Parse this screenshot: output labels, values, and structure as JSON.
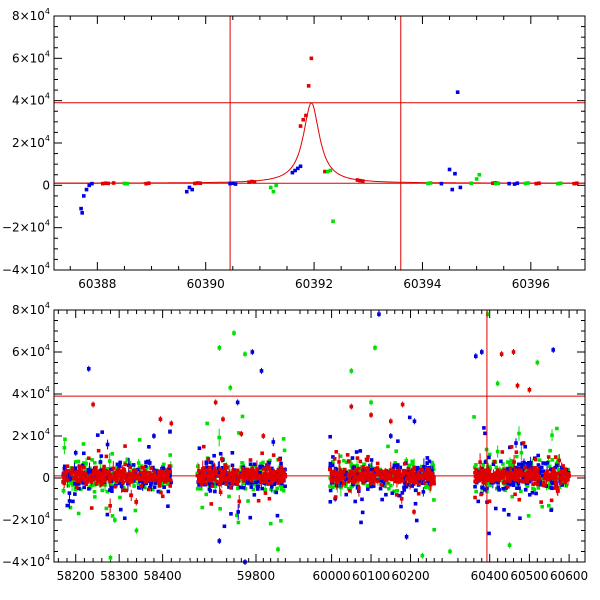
{
  "colors": {
    "red": "#e00000",
    "green": "#00e000",
    "blue": "#0000e0",
    "axis": "#000000"
  },
  "chart_data": [
    {
      "type": "scatter",
      "title": "",
      "xlabel": "",
      "ylabel": "",
      "xlim": [
        60387.2,
        60397.0
      ],
      "ylim": [
        -40000,
        80000
      ],
      "x_ticks": [
        "60388",
        "60390",
        "60392",
        "60394",
        "60396"
      ],
      "x_tick_values": [
        60388,
        60390,
        60392,
        60394,
        60396
      ],
      "y_ticks": [
        {
          "value": 80000,
          "base": "8×10",
          "exp": "4"
        },
        {
          "value": 60000,
          "base": "6×10",
          "exp": "4"
        },
        {
          "value": 40000,
          "base": "4×10",
          "exp": "4"
        },
        {
          "value": 20000,
          "base": "2×10",
          "exp": "4"
        },
        {
          "value": 0,
          "base": "0",
          "exp": ""
        },
        {
          "value": -20000,
          "base": "−2×10",
          "exp": "4"
        },
        {
          "value": -40000,
          "base": "−4×10",
          "exp": "4"
        }
      ],
      "reference_lines": {
        "horizontal": [
          39000,
          1000
        ],
        "vertical": [
          60390.45,
          60393.6
        ]
      },
      "model_curve": {
        "center": 60391.95,
        "peak": 39000,
        "baseline": 1000,
        "width": 0.18
      },
      "series": [
        {
          "color": "red",
          "points": [
            [
              60388.1,
              800
            ],
            [
              60388.15,
              1000
            ],
            [
              60388.2,
              900
            ],
            [
              60388.3,
              1100
            ],
            [
              60388.9,
              800
            ],
            [
              60388.95,
              1000
            ],
            [
              60389.8,
              900
            ],
            [
              60389.85,
              1100
            ],
            [
              60389.9,
              1000
            ],
            [
              60390.8,
              1500
            ],
            [
              60390.85,
              1800
            ],
            [
              60390.9,
              1600
            ],
            [
              60391.75,
              28000
            ],
            [
              60391.8,
              31000
            ],
            [
              60391.85,
              33000
            ],
            [
              60391.9,
              47000
            ],
            [
              60391.95,
              60000
            ],
            [
              60392.2,
              6500
            ],
            [
              60392.8,
              2500
            ],
            [
              60392.85,
              2200
            ],
            [
              60392.9,
              2000
            ],
            [
              60395.3,
              1000
            ],
            [
              60395.35,
              1200
            ],
            [
              60396.1,
              800
            ],
            [
              60396.15,
              1000
            ],
            [
              60396.8,
              800
            ],
            [
              60396.85,
              1000
            ]
          ]
        },
        {
          "color": "blue",
          "points": [
            [
              60387.7,
              -11000
            ],
            [
              60387.72,
              -13000
            ],
            [
              60387.75,
              -5000
            ],
            [
              60387.8,
              -2000
            ],
            [
              60387.85,
              0
            ],
            [
              60387.9,
              800
            ],
            [
              60389.65,
              -3000
            ],
            [
              60389.7,
              -1000
            ],
            [
              60389.75,
              -2000
            ],
            [
              60390.45,
              800
            ],
            [
              60390.5,
              1000
            ],
            [
              60390.55,
              600
            ],
            [
              60391.6,
              6000
            ],
            [
              60391.65,
              7000
            ],
            [
              60391.7,
              8000
            ],
            [
              60391.75,
              9000
            ],
            [
              60394.35,
              800
            ],
            [
              60394.5,
              7500
            ],
            [
              60394.6,
              5500
            ],
            [
              60394.65,
              44000
            ],
            [
              60394.55,
              -2000
            ],
            [
              60394.7,
              -1000
            ],
            [
              60395.6,
              800
            ],
            [
              60395.7,
              600
            ],
            [
              60395.75,
              1000
            ]
          ]
        },
        {
          "color": "green",
          "points": [
            [
              60388.5,
              900
            ],
            [
              60388.55,
              800
            ],
            [
              60391.2,
              -1000
            ],
            [
              60391.25,
              -3000
            ],
            [
              60391.3,
              0
            ],
            [
              60392.25,
              6500
            ],
            [
              60392.3,
              7000
            ],
            [
              60392.35,
              -17000
            ],
            [
              60394.1,
              900
            ],
            [
              60394.15,
              1100
            ],
            [
              60394.9,
              1000
            ],
            [
              60395.0,
              3000
            ],
            [
              60395.05,
              5000
            ],
            [
              60395.35,
              800
            ],
            [
              60395.4,
              1000
            ],
            [
              60395.9,
              900
            ],
            [
              60395.95,
              1100
            ],
            [
              60396.5,
              800
            ],
            [
              60396.55,
              1000
            ]
          ]
        }
      ]
    },
    {
      "type": "scatter",
      "title": "",
      "xlabel": "",
      "ylabel": "",
      "ylim": [
        -40000,
        80000
      ],
      "x_segments": [
        {
          "xlim": [
            58150,
            58440
          ],
          "ticks": [
            58200,
            58300,
            58400
          ]
        },
        {
          "xlim": [
            59620,
            59920
          ],
          "ticks": [
            59800
          ]
        },
        {
          "xlim": [
            59920,
            60300
          ],
          "ticks": [
            60000,
            60100,
            60200
          ]
        },
        {
          "xlim": [
            60300,
            60640
          ],
          "ticks": [
            60400,
            60500,
            60600
          ]
        }
      ],
      "x_ticks": [
        "58200",
        "58300",
        "58400",
        "59800",
        "60000",
        "60100",
        "60200",
        "60400",
        "60500",
        "60600"
      ],
      "y_ticks": [
        {
          "value": 80000,
          "base": "8×10",
          "exp": "4"
        },
        {
          "value": 60000,
          "base": "6×10",
          "exp": "4"
        },
        {
          "value": 40000,
          "base": "4×10",
          "exp": "4"
        },
        {
          "value": 20000,
          "base": "2×10",
          "exp": "4"
        },
        {
          "value": 0,
          "base": "0",
          "exp": ""
        },
        {
          "value": -20000,
          "base": "−2×10",
          "exp": "4"
        },
        {
          "value": -40000,
          "base": "−4×10",
          "exp": "4"
        }
      ],
      "reference_lines": {
        "horizontal": [
          39000,
          1000
        ],
        "vertical": [
          60393
        ]
      },
      "observing_seasons": [
        [
          58170,
          58420
        ],
        [
          59640,
          59880
        ],
        [
          59995,
          60260
        ],
        [
          60360,
          60600
        ]
      ],
      "series": [
        {
          "color": "red",
          "points": [
            [
              58240,
              35000
            ],
            [
              58395,
              28000
            ],
            [
              58420,
              26000
            ],
            [
              59690,
              36000
            ],
            [
              59710,
              28000
            ],
            [
              59760,
              21000
            ],
            [
              59820,
              20000
            ],
            [
              60050,
              34000
            ],
            [
              60100,
              30000
            ],
            [
              60150,
              27000
            ],
            [
              60180,
              35000
            ],
            [
              60430,
              59000
            ],
            [
              60460,
              60000
            ],
            [
              60470,
              44000
            ],
            [
              60500,
              42000
            ]
          ]
        },
        {
          "color": "blue",
          "points": [
            [
              58230,
              52000
            ],
            [
              58200,
              12000
            ],
            [
              58300,
              6000
            ],
            [
              58380,
              20000
            ],
            [
              59790,
              60000
            ],
            [
              59815,
              51000
            ],
            [
              59750,
              36000
            ],
            [
              60120,
              78000
            ],
            [
              60150,
              20000
            ],
            [
              60210,
              27000
            ],
            [
              60365,
              58000
            ],
            [
              60380,
              60000
            ],
            [
              60560,
              61000
            ],
            [
              59700,
              -30000
            ],
            [
              59770,
              -40000
            ],
            [
              60190,
              -28000
            ]
          ]
        },
        {
          "color": "green",
          "points": [
            [
              58280,
              -38000
            ],
            [
              58290,
              -20000
            ],
            [
              58340,
              -25000
            ],
            [
              59740,
              69000
            ],
            [
              59700,
              62000
            ],
            [
              59770,
              59000
            ],
            [
              59730,
              43000
            ],
            [
              60110,
              62000
            ],
            [
              60050,
              51000
            ],
            [
              60100,
              36000
            ],
            [
              60395,
              78000
            ],
            [
              60420,
              45000
            ],
            [
              60520,
              55000
            ],
            [
              60300,
              -35000
            ],
            [
              60450,
              -32000
            ],
            [
              59860,
              -34000
            ],
            [
              60230,
              -37000
            ]
          ]
        }
      ]
    }
  ]
}
